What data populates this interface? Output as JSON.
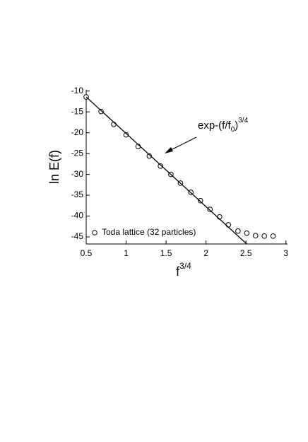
{
  "chart_data": {
    "type": "scatter",
    "x_label": "f",
    "x_label_sup": "3/4",
    "y_label": "ln E(f)",
    "annotation": [
      "exp-(f/f",
      "0",
      ")",
      "3/4"
    ],
    "xlim": [
      0.5,
      3.02
    ],
    "ylim": [
      -46.7,
      -9.7
    ],
    "xticks": [
      0.5,
      1,
      1.5,
      2,
      2.5,
      3
    ],
    "yticks": [
      -10,
      -15,
      -20,
      -25,
      -30,
      -35,
      -40,
      -45
    ],
    "legend": "bottom-left",
    "series": [
      {
        "name": "Toda lattice (32 particles)",
        "style": "markers",
        "color": "#000000",
        "x": [
          0.5,
          0.686,
          0.845,
          1.0,
          1.15,
          1.29,
          1.43,
          1.56,
          1.68,
          1.81,
          1.93,
          2.05,
          2.17,
          2.28,
          2.4,
          2.51,
          2.62,
          2.73,
          2.84
        ],
        "values": [
          -11.4,
          -14.9,
          -18.0,
          -20.5,
          -23.3,
          -25.6,
          -28.0,
          -30.0,
          -32.1,
          -34.3,
          -36.3,
          -38.4,
          -40.2,
          -42.1,
          -43.6,
          -44.1,
          -44.7,
          -44.8,
          -44.8
        ]
      },
      {
        "style": "line",
        "color": "#000000",
        "x": [
          0.5,
          2.51
        ],
        "values": [
          -11.4,
          -46.7
        ]
      }
    ]
  }
}
